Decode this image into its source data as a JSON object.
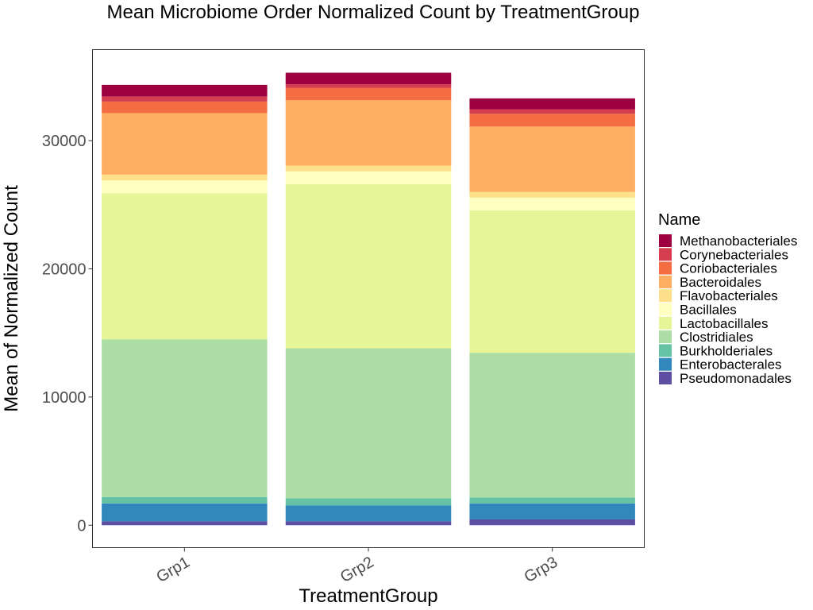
{
  "chart_data": {
    "type": "bar",
    "stacked": true,
    "title": "Mean Microbiome Order Normalized Count by TreatmentGroup",
    "xlabel": "TreatmentGroup",
    "ylabel": "Mean of Normalized Count",
    "categories": [
      "Grp1",
      "Grp2",
      "Grp3"
    ],
    "ylim": [
      -1750,
      37100
    ],
    "yticks": [
      0,
      10000,
      20000,
      30000
    ],
    "ytick_labels": [
      "0",
      "10000",
      "20000",
      "30000"
    ],
    "grid": false,
    "legend": {
      "title": "Name",
      "position": "right"
    },
    "series": [
      {
        "name": "Pseudomonadales",
        "color": "#5e4fa2",
        "values": [
          300,
          300,
          450
        ]
      },
      {
        "name": "Enterobacterales",
        "color": "#3288bd",
        "values": [
          1400,
          1250,
          1250
        ]
      },
      {
        "name": "Burkholderiales",
        "color": "#66c2a5",
        "values": [
          500,
          550,
          450
        ]
      },
      {
        "name": "Clostridiales",
        "color": "#abdda4",
        "values": [
          12300,
          11700,
          11300
        ]
      },
      {
        "name": "Lactobacillales",
        "color": "#e6f598",
        "values": [
          11400,
          12800,
          11100
        ]
      },
      {
        "name": "Bacillales",
        "color": "#ffffbf",
        "values": [
          1000,
          1000,
          1000
        ]
      },
      {
        "name": "Flavobacteriales",
        "color": "#fee08b",
        "values": [
          450,
          450,
          450
        ]
      },
      {
        "name": "Bacteroidales",
        "color": "#fdae61",
        "values": [
          4800,
          5100,
          5100
        ]
      },
      {
        "name": "Coriobacteriales",
        "color": "#f46d43",
        "values": [
          900,
          950,
          1000
        ]
      },
      {
        "name": "Corynebacteriales",
        "color": "#d53e4f",
        "values": [
          400,
          300,
          350
        ]
      },
      {
        "name": "Methanobacteriales",
        "color": "#9e0142",
        "values": [
          900,
          900,
          850
        ]
      }
    ]
  }
}
